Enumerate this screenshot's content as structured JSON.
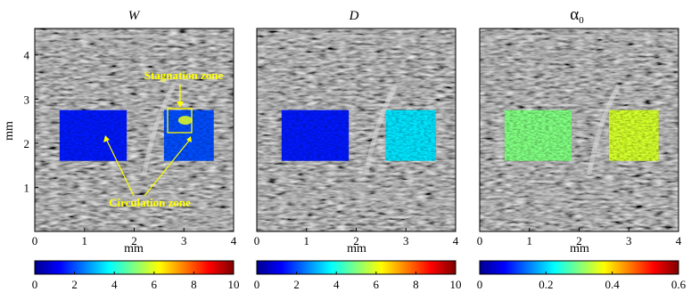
{
  "chart_data": [
    {
      "type": "heatmap",
      "title": "W",
      "xlabel": "mm",
      "ylabel": "mm",
      "xlim": [
        0,
        4
      ],
      "ylim": [
        0,
        4.6
      ],
      "xticks": [
        "0",
        "1",
        "2",
        "3",
        "4"
      ],
      "yticks": [
        "1",
        "2",
        "3",
        "4"
      ],
      "colorbar": {
        "ticks": [
          "0",
          "2",
          "4",
          "6",
          "8",
          "10"
        ],
        "range": [
          0,
          10
        ]
      },
      "regions": [
        {
          "x": [
            0.5,
            1.85
          ],
          "y": [
            1.6,
            2.75
          ],
          "typical_value": 1.5
        },
        {
          "x": [
            2.6,
            3.6
          ],
          "y": [
            1.6,
            2.75
          ],
          "typical_value": 2,
          "max_value": 6
        }
      ],
      "annotations": {
        "stagnation": "Stagnation zone",
        "circulation": "Circulation zone"
      }
    },
    {
      "type": "heatmap",
      "title": "D",
      "xlabel": "mm",
      "xlim": [
        0,
        4
      ],
      "ylim": [
        0,
        4.6
      ],
      "xticks": [
        "0",
        "1",
        "2",
        "3",
        "4"
      ],
      "colorbar": {
        "ticks": [
          "0",
          "2",
          "4",
          "6",
          "8",
          "10"
        ],
        "range": [
          0,
          10
        ]
      },
      "regions": [
        {
          "x": [
            0.5,
            1.85
          ],
          "y": [
            1.6,
            2.75
          ],
          "typical_value": 1.5
        },
        {
          "x": [
            2.6,
            3.6
          ],
          "y": [
            1.6,
            2.75
          ],
          "typical_value": 3.5
        }
      ]
    },
    {
      "type": "heatmap",
      "title": "α0",
      "xlabel": "mm",
      "xlim": [
        0,
        4
      ],
      "ylim": [
        0,
        4.6
      ],
      "xticks": [
        "0",
        "1",
        "2",
        "3",
        "4"
      ],
      "colorbar": {
        "ticks": [
          "0",
          "0.2",
          "0.4",
          "0.6"
        ],
        "range": [
          0,
          0.6
        ]
      },
      "regions": [
        {
          "x": [
            0.5,
            1.85
          ],
          "y": [
            1.6,
            2.75
          ],
          "typical_value": 0.3
        },
        {
          "x": [
            2.6,
            3.6
          ],
          "y": [
            1.6,
            2.75
          ],
          "typical_value": 0.35
        }
      ]
    }
  ]
}
